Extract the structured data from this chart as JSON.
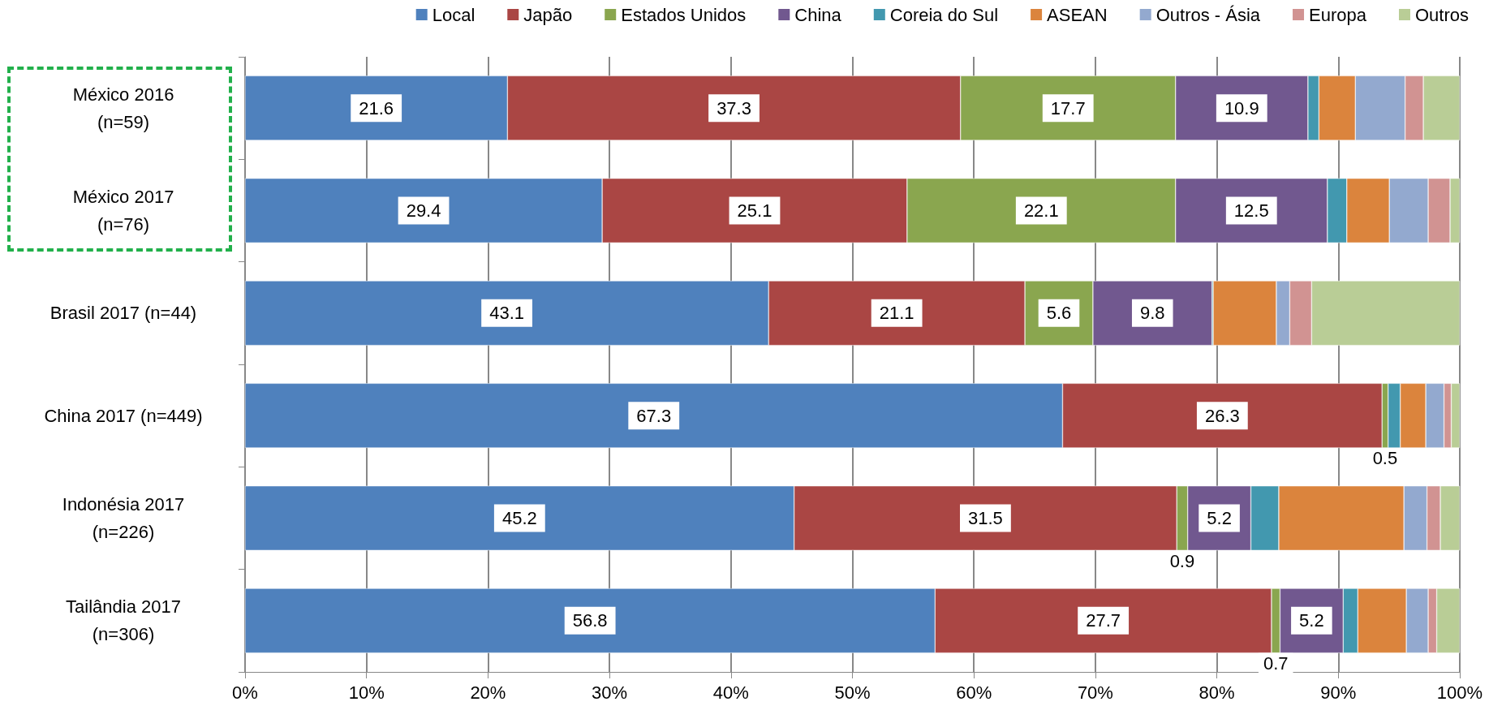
{
  "chart_data": {
    "type": "bar",
    "orientation": "horizontal",
    "stacked": true,
    "categories": [
      "México 2016\n(n=59)",
      "México 2017\n(n=76)",
      "Brasil 2017 (n=44)",
      "China 2017 (n=449)",
      "Indonésia 2017\n(n=226)",
      "Tailândia 2017\n(n=306)"
    ],
    "series": [
      {
        "name": "Local",
        "color": "#4f81bd",
        "values": [
          21.6,
          29.4,
          43.1,
          67.3,
          45.2,
          56.8
        ],
        "value_labels": [
          "21.6",
          "29.4",
          "43.1",
          "67.3",
          "45.2",
          "56.8"
        ]
      },
      {
        "name": "Japão",
        "color": "#aa4644",
        "values": [
          37.3,
          25.1,
          21.1,
          26.3,
          31.5,
          27.7
        ],
        "value_labels": [
          "37.3",
          "25.1",
          "21.1",
          "26.3",
          "31.5",
          "27.7"
        ]
      },
      {
        "name": "Estados Unidos",
        "color": "#8aa64f",
        "values": [
          17.7,
          22.1,
          5.6,
          0.5,
          0.9,
          0.7
        ],
        "value_labels": [
          "17.7",
          "22.1",
          "5.6",
          "0.5",
          "0.9",
          "0.7"
        ]
      },
      {
        "name": "China",
        "color": "#71588f",
        "values": [
          10.9,
          12.5,
          9.8,
          null,
          5.2,
          5.2
        ],
        "value_labels": [
          "10.9",
          "12.5",
          "9.8",
          null,
          "5.2",
          "5.2"
        ]
      },
      {
        "name": "Coreia do Sul",
        "color": "#4298af",
        "values": [
          0.9,
          1.6,
          0.1,
          1.0,
          2.3,
          1.2
        ]
      },
      {
        "name": "ASEAN",
        "color": "#db843d",
        "values": [
          3.0,
          3.5,
          5.2,
          2.1,
          10.3,
          4.0
        ]
      },
      {
        "name": "Outros - Ásia",
        "color": "#93a9cf",
        "values": [
          4.1,
          3.2,
          1.1,
          1.5,
          1.9,
          1.8
        ]
      },
      {
        "name": "Europa",
        "color": "#d19392",
        "values": [
          1.5,
          1.8,
          1.8,
          0.6,
          1.1,
          0.7
        ]
      },
      {
        "name": "Outros",
        "color": "#b9cd96",
        "values": [
          3.0,
          0.8,
          12.2,
          0.7,
          1.6,
          1.9
        ]
      }
    ],
    "xlim": [
      0,
      100
    ],
    "xticks": [
      {
        "value": 0,
        "label": "0%"
      },
      {
        "value": 10,
        "label": "10%"
      },
      {
        "value": 20,
        "label": "20%"
      },
      {
        "value": 30,
        "label": "30%"
      },
      {
        "value": 40,
        "label": "40%"
      },
      {
        "value": 50,
        "label": "50%"
      },
      {
        "value": 60,
        "label": "60%"
      },
      {
        "value": 70,
        "label": "70%"
      },
      {
        "value": 80,
        "label": "80%"
      },
      {
        "value": 90,
        "label": "90%"
      },
      {
        "value": 100,
        "label": "100%"
      }
    ],
    "grid": "x",
    "legend": "top"
  }
}
